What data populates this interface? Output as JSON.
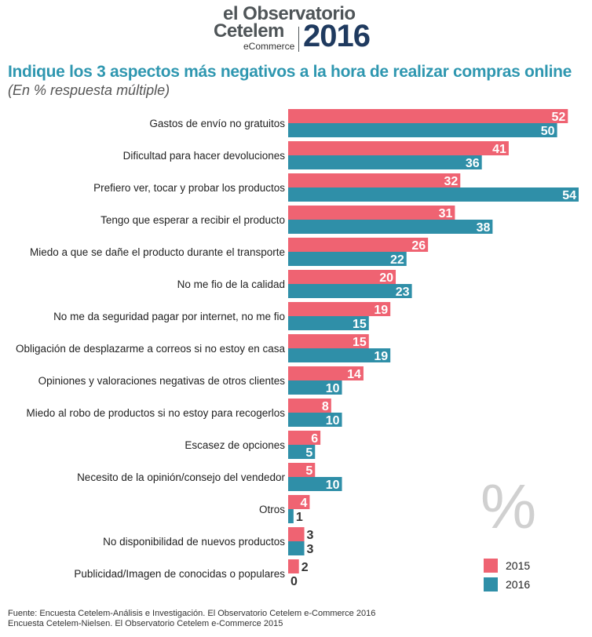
{
  "logo": {
    "line1": "el Observatorio",
    "line2": "Cetelem",
    "line3": "eCommerce",
    "year": "2016"
  },
  "title": "Indique los 3 aspectos más negativos a la hora de realizar compras online",
  "subtitle": "(En %  respuesta múltiple)",
  "watermark": "%",
  "colors": {
    "s2015": "#ef6372",
    "s2016": "#2f8fa8"
  },
  "chart_data": {
    "type": "bar",
    "orientation": "horizontal",
    "title": "Indique los 3 aspectos más negativos a la hora de realizar compras online",
    "subtitle": "(En %  respuesta múltiple)",
    "xlim": [
      0,
      54
    ],
    "categories": [
      "Gastos de envío no gratuitos",
      "Dificultad para hacer devoluciones",
      "Prefiero ver, tocar y probar los productos",
      "Tengo que esperar a recibir el producto",
      "Miedo a que se dañe el producto durante el transporte",
      "No me fio de la calidad",
      "No me da seguridad pagar por internet, no me fio",
      "Obligación de desplazarme a correos si no estoy en casa",
      "Opiniones y valoraciones negativas de otros clientes",
      "Miedo al robo de productos si no estoy para recogerlos",
      "Escasez de opciones",
      "Necesito de la opinión/consejo del vendedor",
      "Otros",
      "No disponibilidad de nuevos productos",
      "Publicidad/Imagen de conocidas o populares"
    ],
    "series": [
      {
        "name": "2015",
        "values": [
          52,
          41,
          32,
          31,
          26,
          20,
          19,
          15,
          14,
          8,
          6,
          5,
          4,
          3,
          2
        ]
      },
      {
        "name": "2016",
        "values": [
          50,
          36,
          54,
          38,
          22,
          23,
          15,
          19,
          10,
          10,
          5,
          10,
          1,
          3,
          0
        ]
      }
    ],
    "legend": "bottom-right"
  },
  "source": [
    "Fuente: Encuesta Cetelem-Análisis e Investigación. El Observatorio Cetelem e-Commerce 2016",
    "Encuesta Cetelem-Nielsen. El Observatorio Cetelem e-Commerce 2015"
  ]
}
